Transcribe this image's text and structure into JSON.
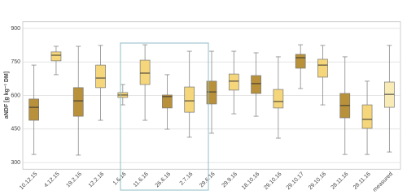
{
  "chart_data": {
    "type": "box",
    "ylabel": "aNDF [g kg⁻¹ DM]",
    "categories": [
      "10.12.15",
      "4.12.15",
      "19.2.16",
      "12.2.16",
      "1.6.16",
      "11.6.16",
      "26.6.16",
      "2.7.16",
      "29.6.16",
      "29.9.16",
      "18.10.16",
      "29.10.16",
      "29.10.17",
      "29.10.16",
      "28.11.16",
      "28.11.16",
      "measured"
    ],
    "whisker_low": [
      336,
      693,
      333,
      489,
      558,
      489,
      449,
      413,
      431,
      518,
      507,
      409,
      631,
      558,
      336,
      336,
      347
    ],
    "q1": [
      489,
      755,
      507,
      635,
      591,
      649,
      544,
      525,
      562,
      624,
      609,
      544,
      722,
      682,
      500,
      453,
      547
    ],
    "median": [
      547,
      780,
      576,
      678,
      602,
      700,
      595,
      576,
      616,
      664,
      653,
      573,
      769,
      736,
      555,
      493,
      605
    ],
    "q3": [
      584,
      795,
      635,
      736,
      613,
      758,
      602,
      638,
      664,
      696,
      689,
      627,
      784,
      762,
      609,
      558,
      660
    ],
    "whisker_high": [
      736,
      820,
      820,
      824,
      649,
      827,
      693,
      798,
      798,
      798,
      791,
      773,
      827,
      824,
      773,
      664,
      824
    ],
    "colors": [
      "#b8913a",
      "#f5d67a",
      "#b8913a",
      "#f5d67a",
      "#f5d67a",
      "#f5d67a",
      "#b8913a",
      "#f5d67a",
      "#b8913a",
      "#f5d67a",
      "#b8913a",
      "#f5d67a",
      "#b8913a",
      "#f5d67a",
      "#b8913a",
      "#f5d67a",
      "#f8ebb5"
    ],
    "ylim": [
      270,
      930
    ],
    "yticks": [
      300,
      450,
      600,
      750,
      900
    ],
    "grid": true
  }
}
